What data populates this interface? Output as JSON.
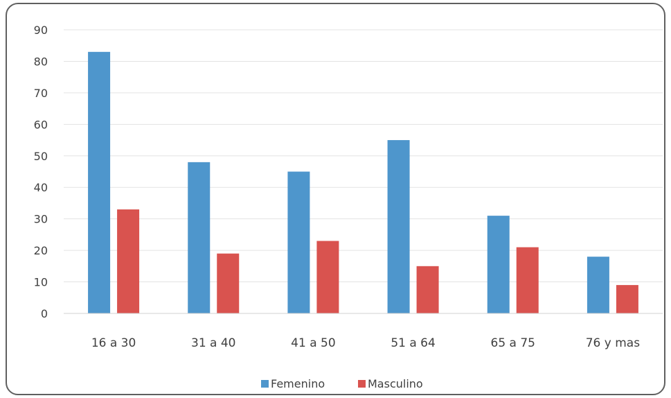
{
  "chart_data": {
    "type": "bar",
    "categories": [
      "16 a 30",
      "31 a 40",
      "41 a 50",
      "51 a 64",
      "65 a 75",
      "76 y mas"
    ],
    "series": [
      {
        "name": "Femenino",
        "values": [
          83,
          48,
          45,
          55,
          31,
          18
        ],
        "color": "#4e96cc"
      },
      {
        "name": "Masculino",
        "values": [
          33,
          19,
          23,
          15,
          21,
          9
        ],
        "color": "#d9534f"
      }
    ],
    "title": "",
    "xlabel": "",
    "ylabel": "",
    "ylim": [
      0,
      90
    ],
    "yticks": [
      "0",
      "10",
      "20",
      "30",
      "40",
      "50",
      "60",
      "70",
      "80",
      "90"
    ],
    "grid": true,
    "legend_position": "bottom"
  }
}
